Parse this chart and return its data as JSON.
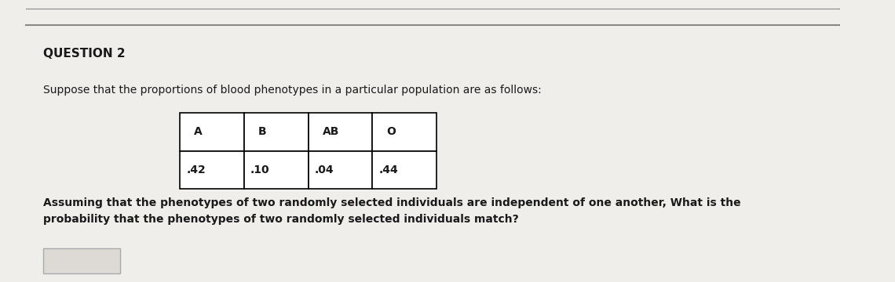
{
  "title": "QUESTION 2",
  "intro_text": "Suppose that the proportions of blood phenotypes in a particular population are as follows:",
  "table_headers": [
    "A",
    "B",
    "AB",
    "O"
  ],
  "table_values": [
    ".42",
    ".10",
    ".04",
    ".44"
  ],
  "question_text": "Assuming that the phenotypes of two randomly selected individuals are independent of one another, What is the\nprobability that the phenotypes of two randomly selected individuals match?",
  "bg_color": "#f0eeea",
  "line_color": "#888888",
  "text_color": "#1a1a1a",
  "title_fontsize": 11,
  "body_fontsize": 10,
  "table_fontsize": 10
}
